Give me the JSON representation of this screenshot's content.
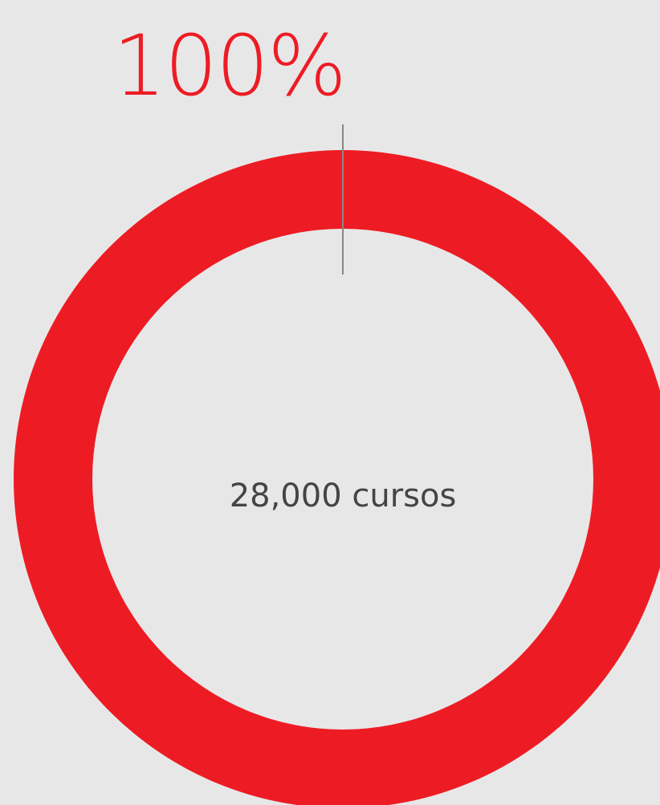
{
  "chart_data": {
    "type": "donut",
    "categories": [
      null
    ],
    "values": [
      100
    ],
    "value_labels": [
      "100%"
    ],
    "colors": [
      "#ed1c24"
    ],
    "center_label": "28,000 cursos"
  }
}
